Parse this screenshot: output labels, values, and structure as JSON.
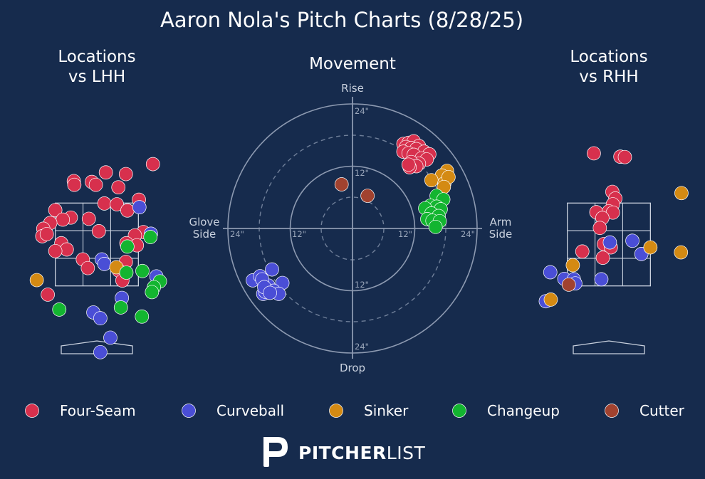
{
  "title": "Aaron Nola's Pitch Charts (8/28/25)",
  "brand": {
    "bold": "PITCHER",
    "light": "LIST"
  },
  "colors": {
    "background": "#162b4d",
    "Four-Seam": "#d7304d",
    "Curveball": "#4a4ed6",
    "Sinker": "#d48a13",
    "Changeup": "#13b530",
    "Cutter": "#a1422f"
  },
  "legend": [
    "Four-Seam",
    "Curveball",
    "Sinker",
    "Changeup",
    "Cutter"
  ],
  "chart_data": [
    {
      "type": "scatter",
      "name": "lhh",
      "title": "Locations\nvs LHH",
      "units": "feet (catcher's view)",
      "xlim": [
        -2.5,
        2.5
      ],
      "ylim": [
        0,
        5.5
      ],
      "strike_zone": {
        "x": [
          -0.83,
          0.83
        ],
        "y": [
          1.5,
          3.5
        ]
      },
      "series": [
        {
          "name": "Four-Seam",
          "points": [
            [
              1.12,
              4.44
            ],
            [
              0.18,
              4.24
            ],
            [
              0.58,
              4.2
            ],
            [
              -0.46,
              4.03
            ],
            [
              -0.1,
              4.01
            ],
            [
              -0.02,
              3.94
            ],
            [
              0.43,
              3.88
            ],
            [
              -0.45,
              3.94
            ],
            [
              0.84,
              3.58
            ],
            [
              0.15,
              3.49
            ],
            [
              0.4,
              3.47
            ],
            [
              -0.83,
              3.33
            ],
            [
              0.61,
              3.32
            ],
            [
              -0.52,
              3.15
            ],
            [
              -0.68,
              3.1
            ],
            [
              -0.93,
              3.02
            ],
            [
              -0.16,
              3.12
            ],
            [
              -1.07,
              2.88
            ],
            [
              -1.09,
              2.7
            ],
            [
              -1.0,
              2.75
            ],
            [
              0.04,
              2.82
            ],
            [
              0.93,
              2.8
            ],
            [
              0.76,
              2.72
            ],
            [
              0.59,
              2.53
            ],
            [
              0.8,
              2.48
            ],
            [
              -0.71,
              2.53
            ],
            [
              -0.6,
              2.38
            ],
            [
              -0.83,
              2.34
            ],
            [
              -0.28,
              2.14
            ],
            [
              0.58,
              2.08
            ],
            [
              -0.18,
              1.93
            ],
            [
              0.44,
              1.87
            ],
            [
              0.51,
              1.63
            ],
            [
              -0.98,
              1.29
            ]
          ]
        },
        {
          "name": "Curveball",
          "points": [
            [
              0.85,
              3.4
            ],
            [
              1.08,
              2.76
            ],
            [
              0.1,
              2.14
            ],
            [
              0.15,
              2.03
            ],
            [
              1.19,
              1.73
            ],
            [
              0.5,
              1.21
            ],
            [
              -0.07,
              0.86
            ],
            [
              0.07,
              0.72
            ],
            [
              0.27,
              0.25
            ],
            [
              0.07,
              -0.1
            ]
          ]
        },
        {
          "name": "Sinker",
          "points": [
            [
              -1.2,
              1.64
            ],
            [
              0.39,
              1.95
            ]
          ]
        },
        {
          "name": "Changeup",
          "points": [
            [
              0.61,
              2.45
            ],
            [
              1.07,
              2.68
            ],
            [
              0.59,
              1.82
            ],
            [
              0.91,
              1.86
            ],
            [
              1.26,
              1.61
            ],
            [
              1.14,
              1.47
            ],
            [
              1.1,
              1.35
            ],
            [
              -0.75,
              0.93
            ],
            [
              0.48,
              0.98
            ],
            [
              0.9,
              0.76
            ]
          ]
        },
        {
          "name": "Cutter",
          "points": []
        }
      ]
    },
    {
      "type": "scatter",
      "name": "movement",
      "title": "Movement",
      "units": "inches",
      "xlabel_left": "Glove\nSide",
      "xlabel_right": "Arm\nSide",
      "ylabel_top": "Rise",
      "ylabel_bottom": "Drop",
      "ring_ticks": [
        "24\"",
        "12\"",
        "12\"",
        "24\""
      ],
      "xlim": [
        -24,
        24
      ],
      "ylim": [
        -24,
        24
      ],
      "series": [
        {
          "name": "Four-Seam",
          "points": [
            [
              9.8,
              16.3
            ],
            [
              10.8,
              16.5
            ],
            [
              11.8,
              16.8
            ],
            [
              12.8,
              15.9
            ],
            [
              10.3,
              15.7
            ],
            [
              11.3,
              15.5
            ],
            [
              12.3,
              15.3
            ],
            [
              13.8,
              14.8
            ],
            [
              14.8,
              14.3
            ],
            [
              9.8,
              14.8
            ],
            [
              10.8,
              14.5
            ],
            [
              11.8,
              14.2
            ],
            [
              13.3,
              13.5
            ],
            [
              14.3,
              13.3
            ],
            [
              12.8,
              12.5
            ],
            [
              11.3,
              12.8
            ],
            [
              12.3,
              12.0
            ],
            [
              11.0,
              11.8
            ],
            [
              10.8,
              12.3
            ]
          ]
        },
        {
          "name": "Curveball",
          "points": [
            [
              -19.2,
              -10.0
            ],
            [
              -17.8,
              -9.2
            ],
            [
              -15.5,
              -7.9
            ],
            [
              -13.5,
              -10.5
            ],
            [
              -17.2,
              -12.6
            ],
            [
              -16.2,
              -11.0
            ],
            [
              -15.2,
              -12.0
            ],
            [
              -14.2,
              -12.6
            ],
            [
              -16.8,
              -12.2
            ],
            [
              -17.4,
              -9.8
            ],
            [
              -17.0,
              -11.3
            ],
            [
              -15.9,
              -12.4
            ]
          ]
        },
        {
          "name": "Sinker",
          "points": [
            [
              18.2,
              11.1
            ],
            [
              17.2,
              10.2
            ],
            [
              15.2,
              9.3
            ],
            [
              17.7,
              8.7
            ],
            [
              18.5,
              9.9
            ],
            [
              17.6,
              8.0
            ]
          ]
        },
        {
          "name": "Changeup",
          "points": [
            [
              16.2,
              6.3
            ],
            [
              17.5,
              5.6
            ],
            [
              15.0,
              4.4
            ],
            [
              16.2,
              4.2
            ],
            [
              17.0,
              3.7
            ],
            [
              14.0,
              3.9
            ],
            [
              15.2,
              2.9
            ],
            [
              16.6,
              2.4
            ],
            [
              14.4,
              1.8
            ],
            [
              15.4,
              1.5
            ],
            [
              16.8,
              1.4
            ],
            [
              16.0,
              0.3
            ]
          ]
        },
        {
          "name": "Cutter",
          "points": [
            [
              -2.1,
              8.5
            ],
            [
              2.9,
              6.3
            ]
          ]
        }
      ]
    },
    {
      "type": "scatter",
      "name": "rhh",
      "title": "Locations\nvs RHH",
      "units": "feet (catcher's view)",
      "xlim": [
        -2.5,
        2.5
      ],
      "ylim": [
        0,
        5.5
      ],
      "strike_zone": {
        "x": [
          -0.83,
          0.83
        ],
        "y": [
          1.5,
          3.5
        ]
      },
      "series": [
        {
          "name": "Four-Seam",
          "points": [
            [
              -0.3,
              4.7
            ],
            [
              0.23,
              4.62
            ],
            [
              0.32,
              4.61
            ],
            [
              0.07,
              3.77
            ],
            [
              0.13,
              3.61
            ],
            [
              0.08,
              3.47
            ],
            [
              -0.25,
              3.28
            ],
            [
              0.0,
              3.3
            ],
            [
              0.08,
              3.27
            ],
            [
              -0.13,
              3.14
            ],
            [
              -0.18,
              2.9
            ],
            [
              -0.53,
              2.33
            ],
            [
              -0.1,
              2.51
            ],
            [
              0.04,
              2.43
            ],
            [
              -0.12,
              2.18
            ]
          ]
        },
        {
          "name": "Curveball",
          "points": [
            [
              0.47,
              2.59
            ],
            [
              0.65,
              2.27
            ],
            [
              0.02,
              2.55
            ],
            [
              -1.17,
              1.83
            ],
            [
              -0.89,
              1.67
            ],
            [
              -0.7,
              1.66
            ],
            [
              -0.67,
              1.56
            ],
            [
              -0.15,
              1.66
            ],
            [
              -1.26,
              1.13
            ]
          ]
        },
        {
          "name": "Sinker",
          "points": [
            [
              1.45,
              3.74
            ],
            [
              0.83,
              2.43
            ],
            [
              1.44,
              2.31
            ],
            [
              -0.72,
              2.0
            ],
            [
              -1.16,
              1.17
            ]
          ]
        },
        {
          "name": "Changeup",
          "points": []
        },
        {
          "name": "Cutter",
          "points": [
            [
              -0.8,
              1.53
            ]
          ]
        }
      ]
    }
  ]
}
